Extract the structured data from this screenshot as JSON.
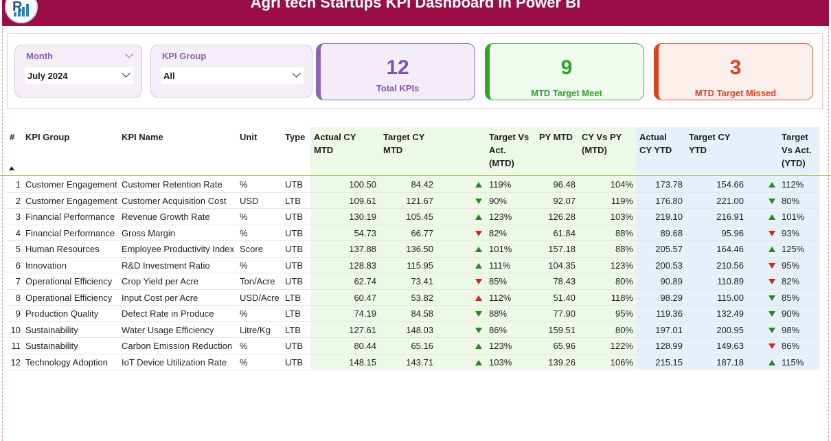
{
  "header": {
    "title": "Agri tech Startups KPI Dashboard in Power BI"
  },
  "filters": {
    "month": {
      "label": "Month",
      "value": "July 2024"
    },
    "kpi_group": {
      "label": "KPI Group",
      "value": "All"
    }
  },
  "cards": {
    "total": {
      "value": "12",
      "caption": "Total KPIs",
      "color": "#8155b0"
    },
    "meet": {
      "value": "9",
      "caption": "MTD Target Meet",
      "color": "#2ea02b"
    },
    "missed": {
      "value": "3",
      "caption": "MTD Target Missed",
      "color": "#d9401d"
    }
  },
  "table": {
    "headers": {
      "num": "#",
      "group": "KPI Group",
      "name": "KPI Name",
      "unit": "Unit",
      "type": "Type",
      "actual_mtd": [
        "Actual CY",
        "MTD"
      ],
      "target_mtd": [
        "Target CY",
        "MTD"
      ],
      "tva_mtd": [
        "Target Vs",
        "Act.",
        "(MTD)"
      ],
      "py_mtd": [
        "PY MTD"
      ],
      "cy_vs_py": [
        "CY Vs PY",
        "(MTD)"
      ],
      "actual_ytd": [
        "Actual",
        "CY YTD"
      ],
      "target_ytd": [
        "Target CY",
        "YTD"
      ],
      "tva_ytd": [
        "Target",
        "Vs Act.",
        "(YTD)"
      ]
    },
    "status_colors": {
      "good": "#1e8a1e",
      "bad": "#d52020"
    },
    "rows": [
      {
        "num": "1",
        "group": "Customer Engagement",
        "name": "Customer Retention Rate",
        "unit": "%",
        "type": "UTB",
        "actual_mtd": "100.50",
        "target_mtd": "84.42",
        "mtd_arrow": "up",
        "tva_mtd": "119%",
        "py_mtd": "96.48",
        "cy_vs_py": "104%",
        "actual_ytd": "173.78",
        "target_ytd": "154.66",
        "ytd_arrow": "up",
        "tva_ytd": "112%"
      },
      {
        "num": "2",
        "group": "Customer Engagement",
        "name": "Customer Acquisition Cost",
        "unit": "USD",
        "type": "LTB",
        "actual_mtd": "109.61",
        "target_mtd": "121.67",
        "mtd_arrow": "down",
        "tva_mtd": "90%",
        "py_mtd": "92.07",
        "cy_vs_py": "119%",
        "actual_ytd": "176.80",
        "target_ytd": "221.00",
        "ytd_arrow": "down",
        "tva_ytd": "80%"
      },
      {
        "num": "3",
        "group": "Financial Performance",
        "name": "Revenue Growth Rate",
        "unit": "%",
        "type": "UTB",
        "actual_mtd": "130.19",
        "target_mtd": "105.45",
        "mtd_arrow": "up",
        "tva_mtd": "123%",
        "py_mtd": "126.28",
        "cy_vs_py": "103%",
        "actual_ytd": "219.10",
        "target_ytd": "216.91",
        "ytd_arrow": "up",
        "tva_ytd": "101%"
      },
      {
        "num": "4",
        "group": "Financial Performance",
        "name": "Gross Margin",
        "unit": "%",
        "type": "UTB",
        "actual_mtd": "54.73",
        "target_mtd": "66.77",
        "mtd_arrow": "red-down",
        "tva_mtd": "82%",
        "py_mtd": "61.84",
        "cy_vs_py": "88%",
        "actual_ytd": "89.68",
        "target_ytd": "95.96",
        "ytd_arrow": "red-down",
        "tva_ytd": "93%"
      },
      {
        "num": "5",
        "group": "Human Resources",
        "name": "Employee Productivity Index",
        "unit": "Score",
        "type": "UTB",
        "actual_mtd": "137.88",
        "target_mtd": "136.50",
        "mtd_arrow": "up",
        "tva_mtd": "101%",
        "py_mtd": "157.18",
        "cy_vs_py": "88%",
        "actual_ytd": "205.57",
        "target_ytd": "164.46",
        "ytd_arrow": "up",
        "tva_ytd": "125%"
      },
      {
        "num": "6",
        "group": "Innovation",
        "name": "R&D Investment Ratio",
        "unit": "%",
        "type": "UTB",
        "actual_mtd": "128.83",
        "target_mtd": "115.95",
        "mtd_arrow": "up",
        "tva_mtd": "111%",
        "py_mtd": "104.35",
        "cy_vs_py": "123%",
        "actual_ytd": "200.53",
        "target_ytd": "210.56",
        "ytd_arrow": "red-down",
        "tva_ytd": "95%"
      },
      {
        "num": "7",
        "group": "Operational Efficiency",
        "name": "Crop Yield per Acre",
        "unit": "Ton/Acre",
        "type": "UTB",
        "actual_mtd": "62.74",
        "target_mtd": "73.41",
        "mtd_arrow": "red-down",
        "tva_mtd": "85%",
        "py_mtd": "78.43",
        "cy_vs_py": "80%",
        "actual_ytd": "90.89",
        "target_ytd": "110.89",
        "ytd_arrow": "red-down",
        "tva_ytd": "82%"
      },
      {
        "num": "8",
        "group": "Operational Efficiency",
        "name": "Input Cost per Acre",
        "unit": "USD/Acre",
        "type": "LTB",
        "actual_mtd": "60.47",
        "target_mtd": "53.82",
        "mtd_arrow": "red-up",
        "tva_mtd": "112%",
        "py_mtd": "51.40",
        "cy_vs_py": "118%",
        "actual_ytd": "98.29",
        "target_ytd": "115.00",
        "ytd_arrow": "down",
        "tva_ytd": "85%"
      },
      {
        "num": "9",
        "group": "Production Quality",
        "name": "Defect Rate in Produce",
        "unit": "%",
        "type": "LTB",
        "actual_mtd": "74.19",
        "target_mtd": "84.58",
        "mtd_arrow": "down",
        "tva_mtd": "88%",
        "py_mtd": "77.90",
        "cy_vs_py": "95%",
        "actual_ytd": "119.36",
        "target_ytd": "132.49",
        "ytd_arrow": "down",
        "tva_ytd": "90%"
      },
      {
        "num": "10",
        "group": "Sustainability",
        "name": "Water Usage Efficiency",
        "unit": "Litre/Kg",
        "type": "LTB",
        "actual_mtd": "127.61",
        "target_mtd": "148.03",
        "mtd_arrow": "down",
        "tva_mtd": "86%",
        "py_mtd": "159.51",
        "cy_vs_py": "80%",
        "actual_ytd": "197.01",
        "target_ytd": "200.95",
        "ytd_arrow": "down",
        "tva_ytd": "98%"
      },
      {
        "num": "11",
        "group": "Sustainability",
        "name": "Carbon Emission Reduction",
        "unit": "%",
        "type": "UTB",
        "actual_mtd": "80.44",
        "target_mtd": "65.16",
        "mtd_arrow": "up",
        "tva_mtd": "123%",
        "py_mtd": "65.96",
        "cy_vs_py": "122%",
        "actual_ytd": "128.99",
        "target_ytd": "149.63",
        "ytd_arrow": "red-down",
        "tva_ytd": "86%"
      },
      {
        "num": "12",
        "group": "Technology Adoption",
        "name": "IoT Device Utilization Rate",
        "unit": "%",
        "type": "UTB",
        "actual_mtd": "148.15",
        "target_mtd": "143.71",
        "mtd_arrow": "up",
        "tva_mtd": "103%",
        "py_mtd": "139.26",
        "cy_vs_py": "106%",
        "actual_ytd": "215.15",
        "target_ytd": "187.18",
        "ytd_arrow": "up",
        "tva_ytd": "115%"
      }
    ]
  }
}
